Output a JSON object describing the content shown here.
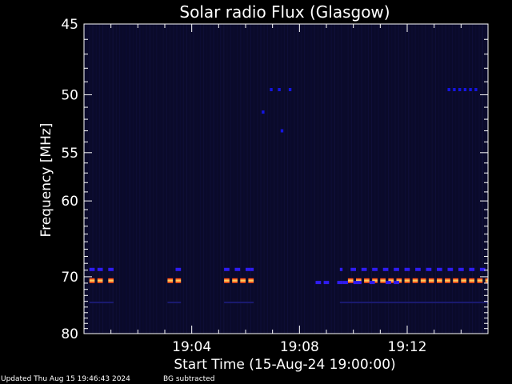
{
  "chart_data": {
    "type": "heatmap",
    "title": "Solar radio Flux (Glasgow)",
    "ylabel": "Frequency [MHz]",
    "xlabel": "Start Time (15-Aug-24 19:00:00)",
    "x_range_minutes": [
      0,
      15
    ],
    "y_range_mhz": [
      45,
      80
    ],
    "y_axis_scale": "reciprocal",
    "x_ticks": [
      {
        "minute": 4,
        "label": "19:04"
      },
      {
        "minute": 8,
        "label": "19:08"
      },
      {
        "minute": 12,
        "label": "19:12"
      }
    ],
    "y_ticks": [
      {
        "mhz": 45,
        "label": "45"
      },
      {
        "mhz": 50,
        "label": "50"
      },
      {
        "mhz": 55,
        "label": "55"
      },
      {
        "mhz": 60,
        "label": "60"
      },
      {
        "mhz": 70,
        "label": "70"
      },
      {
        "mhz": 80,
        "label": "80"
      }
    ],
    "background_color": "#0a0a2a",
    "bands": [
      {
        "mhz": 49.6,
        "intensity": "low",
        "segments": [
          [
            6.9,
            7.0
          ],
          [
            7.2,
            7.3
          ],
          [
            7.6,
            7.7
          ],
          [
            13.5,
            13.6
          ],
          [
            13.7,
            13.8
          ],
          [
            13.9,
            14.0
          ],
          [
            14.1,
            14.2
          ],
          [
            14.3,
            14.4
          ],
          [
            14.5,
            14.6
          ]
        ]
      },
      {
        "mhz": 51.4,
        "intensity": "low",
        "segments": [
          [
            6.6,
            6.7
          ]
        ]
      },
      {
        "mhz": 53.0,
        "intensity": "low",
        "segments": [
          [
            7.3,
            7.4
          ]
        ]
      },
      {
        "mhz": 68.9,
        "intensity": "medium",
        "segments": [
          [
            0.2,
            0.4
          ],
          [
            0.5,
            0.7
          ],
          [
            0.9,
            1.1
          ],
          [
            3.4,
            3.6
          ],
          [
            5.2,
            5.4
          ],
          [
            5.6,
            5.8
          ],
          [
            6.0,
            6.2
          ],
          [
            6.2,
            6.3
          ],
          [
            9.5,
            9.6
          ],
          [
            9.9,
            10.1
          ],
          [
            10.3,
            10.5
          ],
          [
            10.7,
            10.9
          ],
          [
            11.1,
            11.3
          ],
          [
            11.5,
            11.7
          ],
          [
            11.9,
            12.1
          ],
          [
            12.3,
            12.5
          ],
          [
            12.7,
            12.9
          ],
          [
            13.1,
            13.3
          ],
          [
            13.5,
            13.7
          ],
          [
            13.9,
            14.1
          ],
          [
            14.3,
            14.5
          ],
          [
            14.7,
            14.9
          ]
        ]
      },
      {
        "mhz": 70.6,
        "intensity": "high",
        "segments": [
          [
            0.2,
            0.4
          ],
          [
            0.5,
            0.7
          ],
          [
            0.9,
            1.1
          ],
          [
            3.1,
            3.3
          ],
          [
            3.4,
            3.6
          ],
          [
            5.2,
            5.4
          ],
          [
            5.5,
            5.7
          ],
          [
            5.8,
            6.0
          ],
          [
            6.1,
            6.3
          ],
          [
            9.8,
            10.0
          ],
          [
            10.1,
            10.3
          ],
          [
            10.4,
            10.6
          ],
          [
            10.7,
            10.9
          ],
          [
            11.0,
            11.2
          ],
          [
            11.3,
            11.5
          ],
          [
            11.6,
            11.8
          ],
          [
            11.9,
            12.1
          ],
          [
            12.2,
            12.4
          ],
          [
            12.5,
            12.7
          ],
          [
            12.8,
            13.0
          ],
          [
            13.1,
            13.3
          ],
          [
            13.4,
            13.6
          ],
          [
            13.7,
            13.9
          ],
          [
            14.0,
            14.2
          ],
          [
            14.3,
            14.5
          ],
          [
            14.6,
            14.8
          ],
          [
            14.9,
            15.0
          ]
        ]
      },
      {
        "mhz": 70.9,
        "intensity": "medium",
        "segments": [
          [
            8.6,
            8.8
          ],
          [
            8.9,
            9.1
          ],
          [
            9.4,
            9.6
          ],
          [
            9.6,
            9.8
          ],
          [
            10.0,
            10.3
          ],
          [
            10.6,
            10.8
          ],
          [
            11.2,
            11.4
          ],
          [
            11.5,
            11.7
          ]
        ]
      },
      {
        "mhz": 74.2,
        "intensity": "faint",
        "segments": [
          [
            0.2,
            1.1
          ],
          [
            3.1,
            3.6
          ],
          [
            5.2,
            6.3
          ],
          [
            9.5,
            15.0
          ]
        ]
      }
    ],
    "intensity_colors": {
      "faint": "#1a1a70",
      "low": "#1515e0",
      "medium": "#2f1cf0",
      "high": [
        "#ff2a00",
        "#ffd866",
        "#ff2a00"
      ]
    }
  },
  "footer": {
    "updated": "Updated Thu Aug 15 19:46:43 2024",
    "note": "BG subtracted"
  }
}
